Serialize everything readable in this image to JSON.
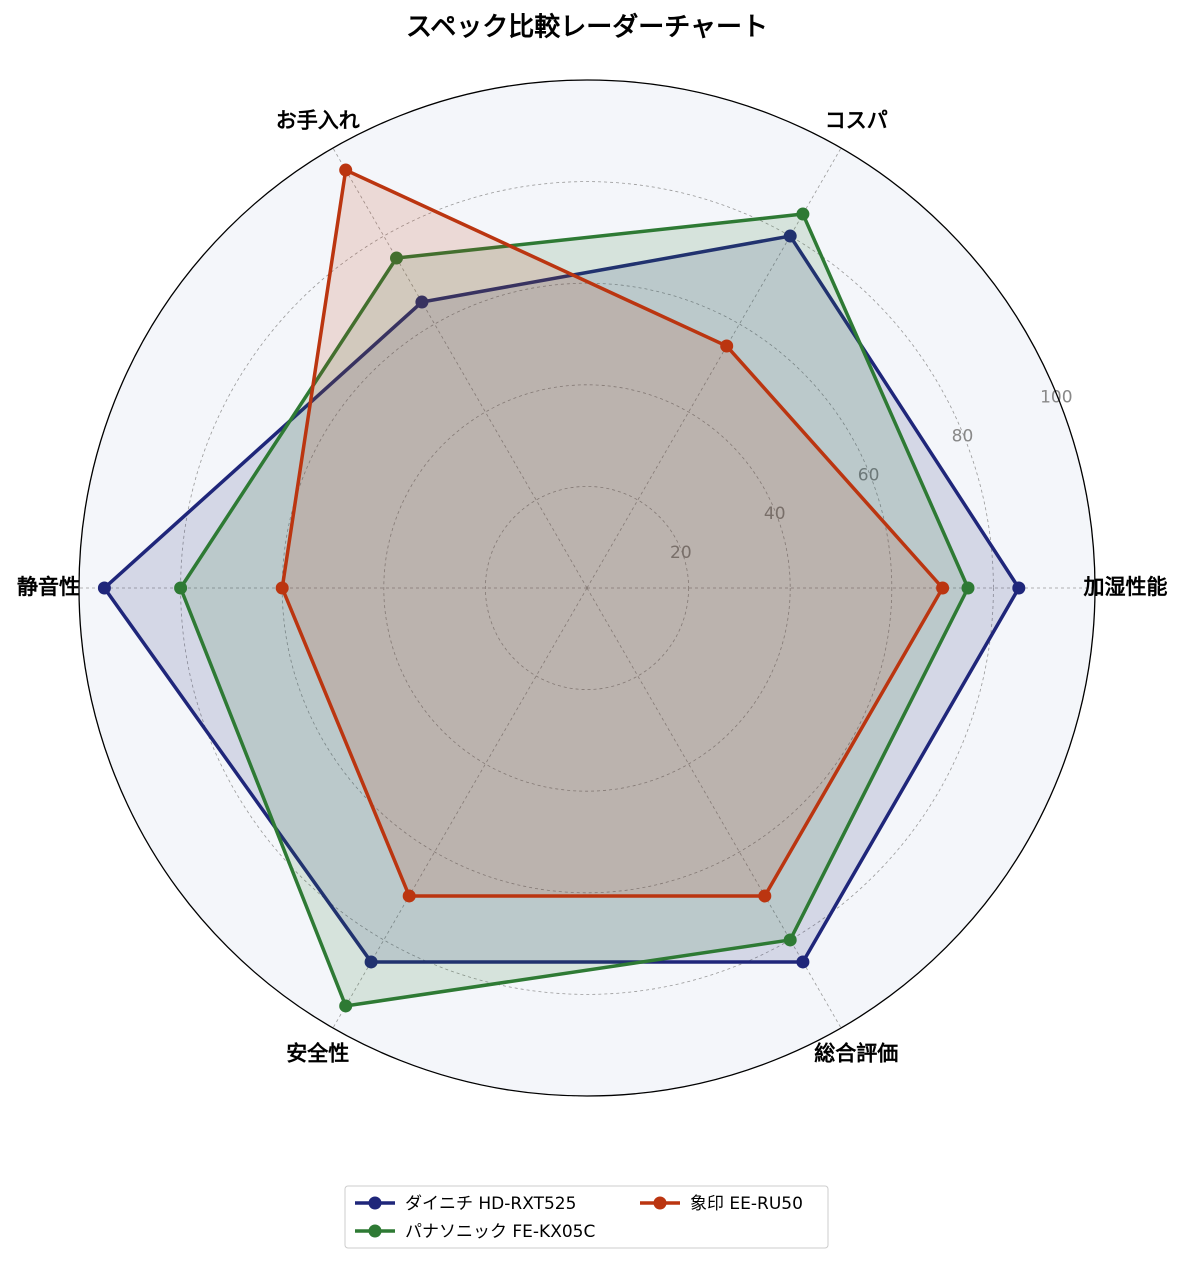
{
  "chart_data": {
    "type": "radar",
    "title": "スペック比較レーダーチャート",
    "categories": [
      "加湿性能",
      "コスパ",
      "お手入れ",
      "静音性",
      "安全性",
      "総合評価"
    ],
    "series": [
      {
        "name": "ダイニチ HD-RXT525",
        "color": "#1f267a",
        "values": [
          85,
          80,
          65,
          95,
          85,
          85
        ]
      },
      {
        "name": "パナソニック FE-KX05C",
        "color": "#2e7a34",
        "values": [
          75,
          85,
          75,
          80,
          95,
          80
        ]
      },
      {
        "name": "象印 EE-RU50",
        "color": "#bb3510",
        "values": [
          70,
          55,
          95,
          60,
          70,
          70
        ]
      }
    ],
    "ylim": [
      0,
      100
    ],
    "yticks": [
      20,
      40,
      60,
      80,
      100
    ],
    "grid": true
  }
}
